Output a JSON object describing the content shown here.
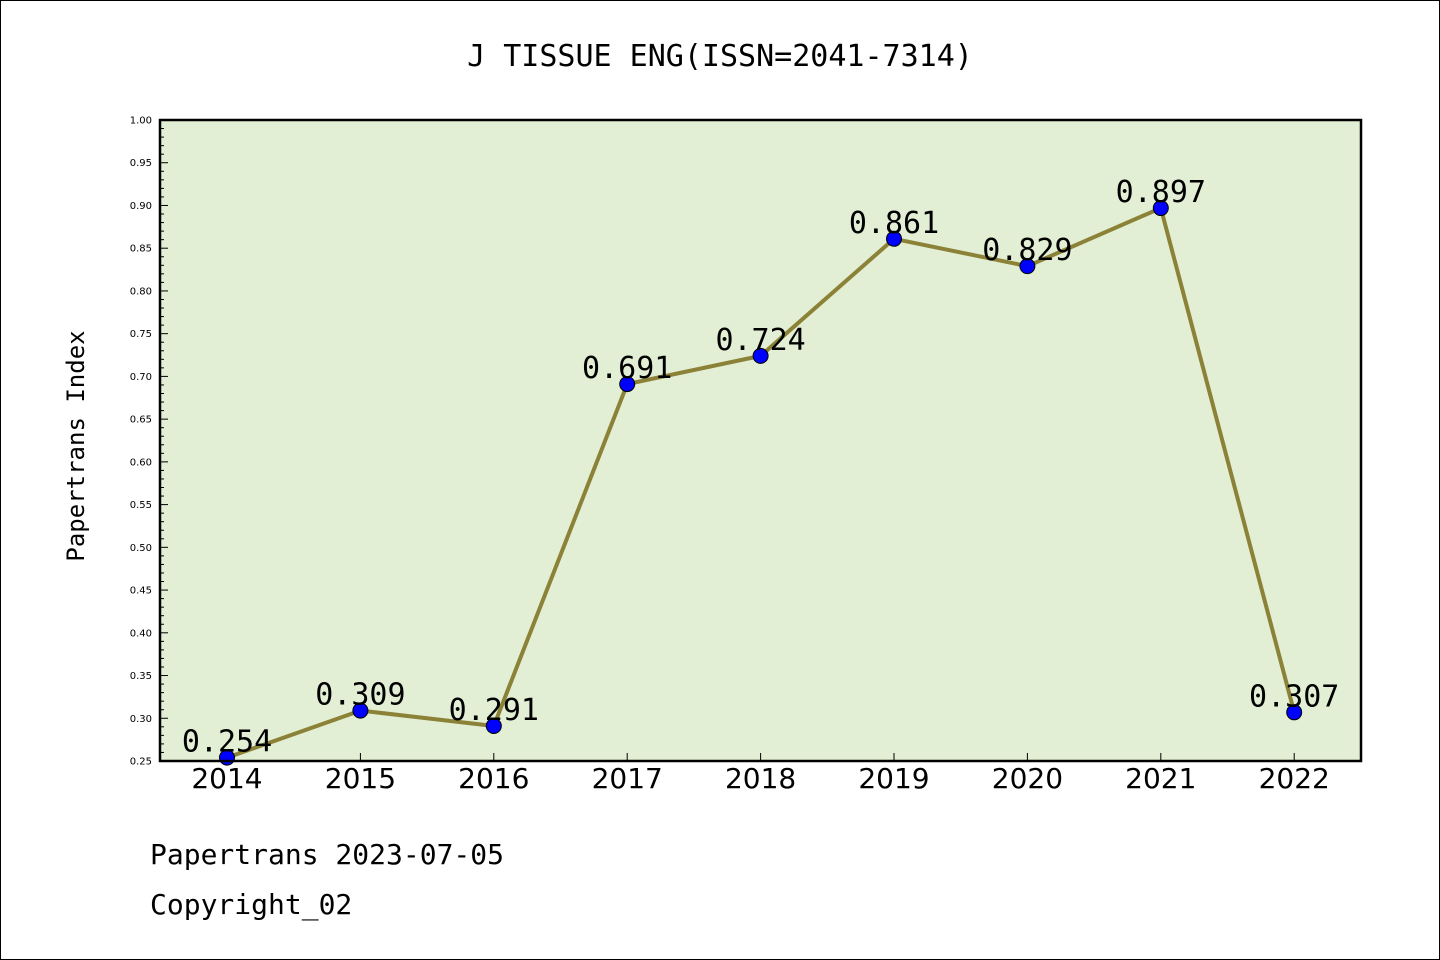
{
  "chart_data": {
    "type": "line",
    "title": "J TISSUE ENG(ISSN=2041-7314)",
    "xlabel": "",
    "ylabel": "Papertrans Index",
    "categories": [
      "2014",
      "2015",
      "2016",
      "2017",
      "2018",
      "2019",
      "2020",
      "2021",
      "2022"
    ],
    "series": [
      {
        "values": [
          0.254,
          0.309,
          0.291,
          0.691,
          0.724,
          0.861,
          0.829,
          0.897,
          0.307
        ]
      }
    ],
    "data_labels": [
      "0.254",
      "0.309",
      "0.291",
      "0.691",
      "0.724",
      "0.861",
      "0.829",
      "0.897",
      "0.307"
    ],
    "ylim": [
      0.25,
      1.0
    ],
    "yticks": [
      "0.25",
      "0.30",
      "0.35",
      "0.40",
      "0.45",
      "0.50",
      "0.55",
      "0.60",
      "0.65",
      "0.70",
      "0.75",
      "0.80",
      "0.85",
      "0.90",
      "0.95",
      "1.00"
    ],
    "grid": false,
    "legend": "none",
    "colors": {
      "plot_background": "#e2efd4",
      "line": "#8b8237",
      "marker": "#0000ff"
    }
  },
  "footer": {
    "line1": "Papertrans 2023-07-05",
    "line2": "Copyright_02"
  }
}
